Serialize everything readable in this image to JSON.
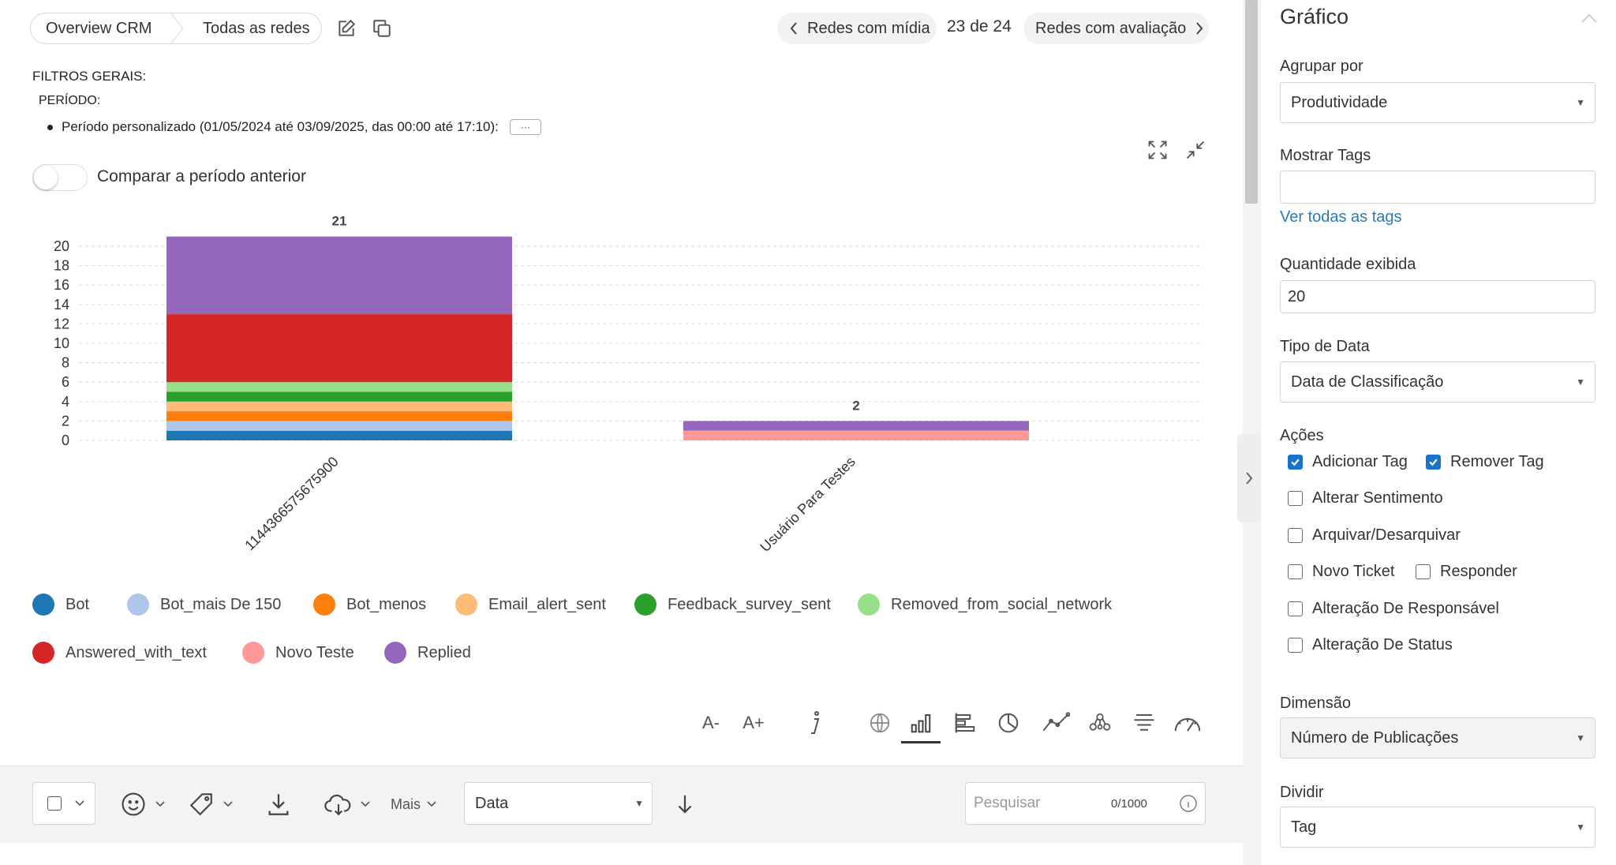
{
  "breadcrumb": {
    "item1": "Overview CRM",
    "item2": "Todas as redes"
  },
  "nav": {
    "prev": "Redes com mídia",
    "count": "23 de 24",
    "next": "Redes com avaliação"
  },
  "filters": {
    "title": "FILTROS GERAIS:",
    "period_title": "PERÍODO:",
    "period_value": "Período personalizado (01/05/2024 até 03/09/2025, das 00:00 até 17:10):",
    "more": "···"
  },
  "compare": {
    "label": "Comparar a período anterior",
    "enabled": false
  },
  "chart_data": {
    "type": "bar",
    "stacked": true,
    "categories": [
      "114436657567590​0",
      "Usuário Para Testes"
    ],
    "category_labels": [
      "1144366575675900",
      "Usuário Para Testes"
    ],
    "totals": [
      21,
      2
    ],
    "ylim": [
      0,
      22
    ],
    "yticks": [
      0,
      2,
      4,
      6,
      8,
      10,
      12,
      14,
      16,
      18,
      20
    ],
    "grid": true,
    "legend_position": "bottom",
    "series": [
      {
        "name": "Bot",
        "color": "#1f77b4",
        "values": [
          1,
          0
        ]
      },
      {
        "name": "Bot_mais De 150",
        "color": "#aec7e8",
        "values": [
          1,
          0
        ]
      },
      {
        "name": "Bot_menos",
        "color": "#ff7f0e",
        "values": [
          1,
          0
        ]
      },
      {
        "name": "Email_alert_sent",
        "color": "#ffbb78",
        "values": [
          1,
          0
        ]
      },
      {
        "name": "Feedback_survey_sent",
        "color": "#2ca02c",
        "values": [
          1,
          0
        ]
      },
      {
        "name": "Removed_from_social_network",
        "color": "#98df8a",
        "values": [
          1,
          0
        ]
      },
      {
        "name": "Answered_with_text",
        "color": "#d62728",
        "values": [
          7,
          0
        ]
      },
      {
        "name": "Novo Teste",
        "color": "#ff9896",
        "values": [
          0,
          1
        ]
      },
      {
        "name": "Replied",
        "color": "#9467bd",
        "values": [
          8,
          1
        ]
      }
    ]
  },
  "toolbar": {
    "font_decrease": "A-",
    "font_increase": "A+"
  },
  "bottom": {
    "more_label": "Mais",
    "sort_select": "Data",
    "search_placeholder": "Pesquisar",
    "search_counter": "0/1000"
  },
  "sidebar": {
    "title": "Gráfico",
    "group_label": "Agrupar por",
    "group_value": "Produtividade",
    "tags_label": "Mostrar Tags",
    "tags_value": "",
    "tags_link": "Ver todas as tags",
    "qty_label": "Quantidade exibida",
    "qty_value": "20",
    "date_type_label": "Tipo de Data",
    "date_type_value": "Data de Classificação",
    "actions_label": "Ações",
    "actions": {
      "add_tag": "Adicionar Tag",
      "remove_tag": "Remover Tag",
      "change_sentiment": "Alterar Sentimento",
      "archive": "Arquivar/Desarquivar",
      "new_ticket": "Novo Ticket",
      "reply": "Responder",
      "change_owner": "Alteração De Responsável",
      "change_status": "Alteração De Status"
    },
    "dimension_label": "Dimensão",
    "dimension_value": "Número de Publicações",
    "split_label": "Dividir",
    "split_value": "Tag"
  }
}
